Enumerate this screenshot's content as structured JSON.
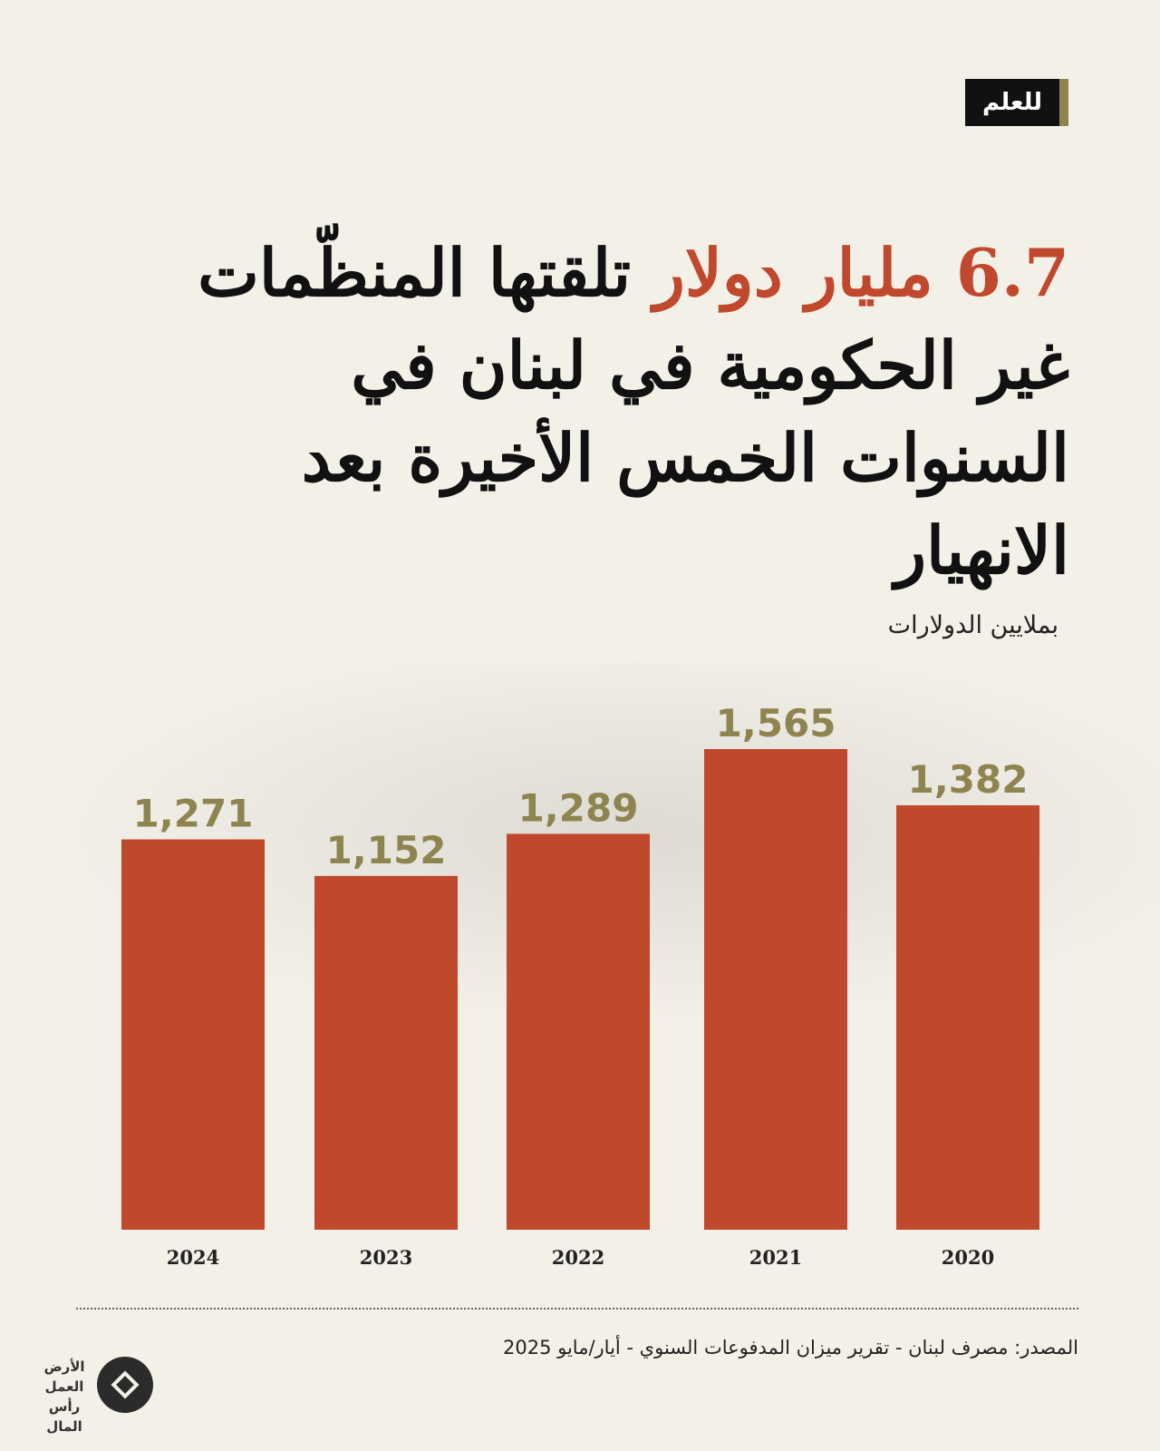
{
  "badge": "للعلم",
  "title": {
    "highlight": "6.7 مليار دولار",
    "rest": "تلقتها المنظّمات غير الحكومية في لبنان في السنوات الخمس الأخيرة بعد الانهيار"
  },
  "unit_label": "بملايين الدولارات",
  "source": "المصدر: مصرف لبنان - تقرير ميزان المدفوعات السنوي - أيار/مايو 2025",
  "logo": {
    "lines": [
      "الأرض",
      "العمل",
      "رأس المال"
    ],
    "icon": "diamond-circle-icon"
  },
  "colors": {
    "bar": "#c0482c",
    "value_label": "#8d8450",
    "highlight": "#c0482c",
    "background": "#f3f0e8"
  },
  "chart_data": {
    "type": "bar",
    "categories": [
      "2024",
      "2023",
      "2022",
      "2021",
      "2020"
    ],
    "values": [
      1271,
      1152,
      1289,
      1565,
      1382
    ],
    "value_labels": [
      "1,271",
      "1,152",
      "1,289",
      "1,565",
      "1,382"
    ],
    "ylabel": "بملايين الدولارات",
    "ylim": [
      0,
      1565
    ],
    "grid": false,
    "legend": "none"
  }
}
